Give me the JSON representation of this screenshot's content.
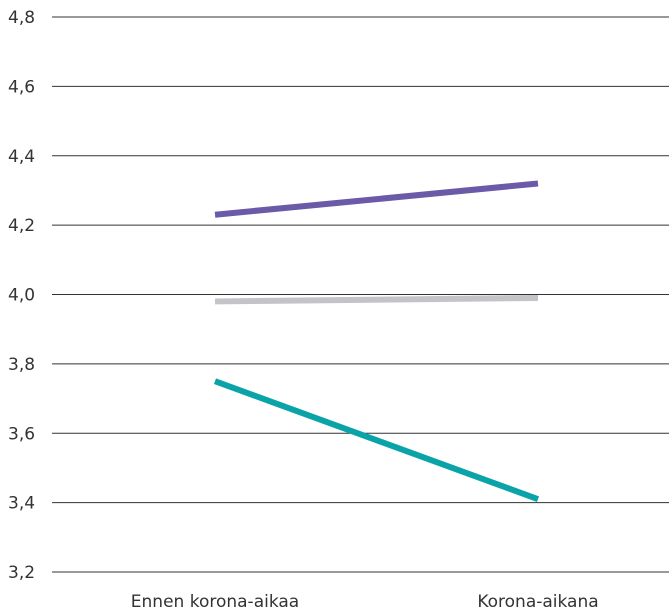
{
  "chart_data": {
    "type": "line",
    "title": "",
    "xlabel": "",
    "ylabel": "",
    "categories": [
      "Ennen korona-aikaa",
      "Korona-aikana"
    ],
    "ylim": [
      3.2,
      4.8
    ],
    "yticks": [
      "3,2",
      "3,4",
      "3,6",
      "3,8",
      "4,0",
      "4,2",
      "4,4",
      "4,6",
      "4,8"
    ],
    "grid": true,
    "legend": "none",
    "series": [
      {
        "values": [
          4.23,
          4.32
        ],
        "color": "#6a5aa8"
      },
      {
        "values": [
          3.98,
          3.99
        ],
        "color": "#c4c4c8"
      },
      {
        "values": [
          3.75,
          3.41
        ],
        "color": "#0aa3a8"
      }
    ]
  }
}
